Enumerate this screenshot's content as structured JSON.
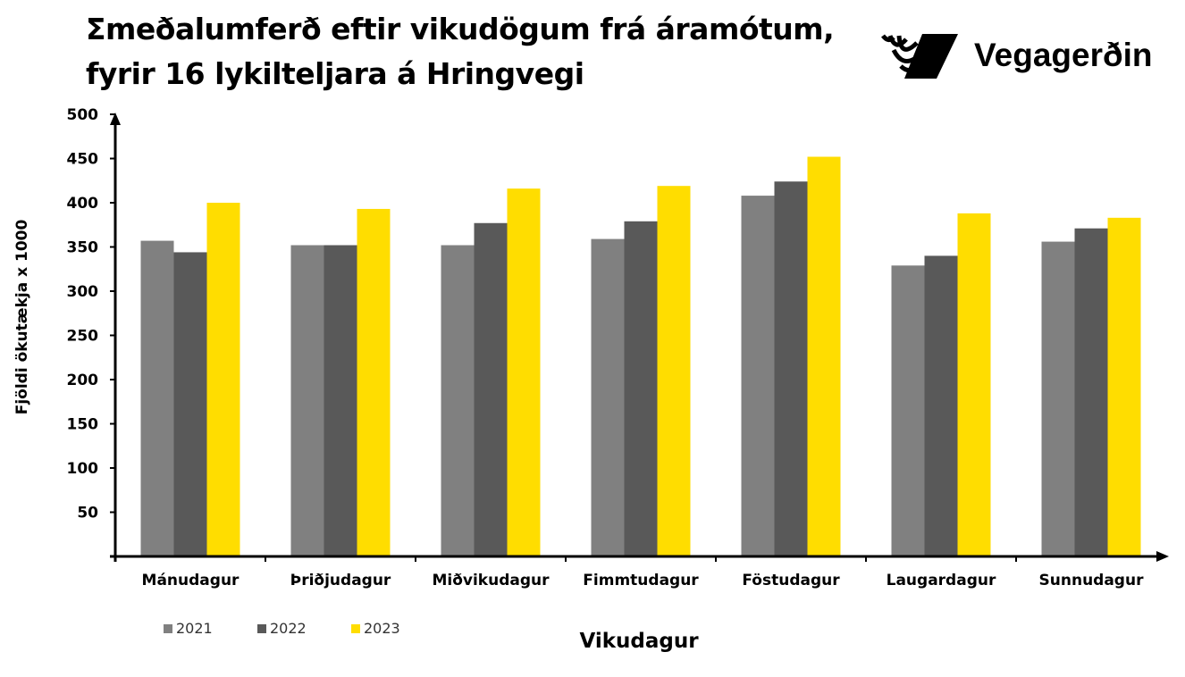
{
  "title": "Σmeðalumferð eftir vikudögum frá áramótum, fyrir 16 lykilteljara á Hringvegi",
  "logo": {
    "text": "Vegagerðin"
  },
  "chart_data": {
    "type": "bar",
    "title": "Σmeðalumferð eftir vikudögum frá áramótum, fyrir 16 lykilteljara á Hringvegi",
    "xlabel": "Vikudagur",
    "ylabel": "Fjöldi ökutækja x 1000",
    "ylim": [
      0,
      500
    ],
    "yticks": [
      50,
      100,
      150,
      200,
      250,
      300,
      350,
      400,
      450,
      500
    ],
    "grid": false,
    "legend_position": "bottom-left",
    "categories": [
      "Mánudagur",
      "Þriðjudagur",
      "Miðvikudagur",
      "Fimmtudagur",
      "Föstudagur",
      "Laugardagur",
      "Sunnudagur"
    ],
    "series": [
      {
        "name": "2021",
        "color": "#808080",
        "values": [
          357,
          352,
          352,
          359,
          408,
          329,
          356
        ]
      },
      {
        "name": "2022",
        "color": "#595959",
        "values": [
          344,
          352,
          377,
          379,
          424,
          340,
          371
        ]
      },
      {
        "name": "2023",
        "color": "#FFDD00",
        "values": [
          400,
          393,
          416,
          419,
          452,
          388,
          383
        ]
      }
    ]
  }
}
